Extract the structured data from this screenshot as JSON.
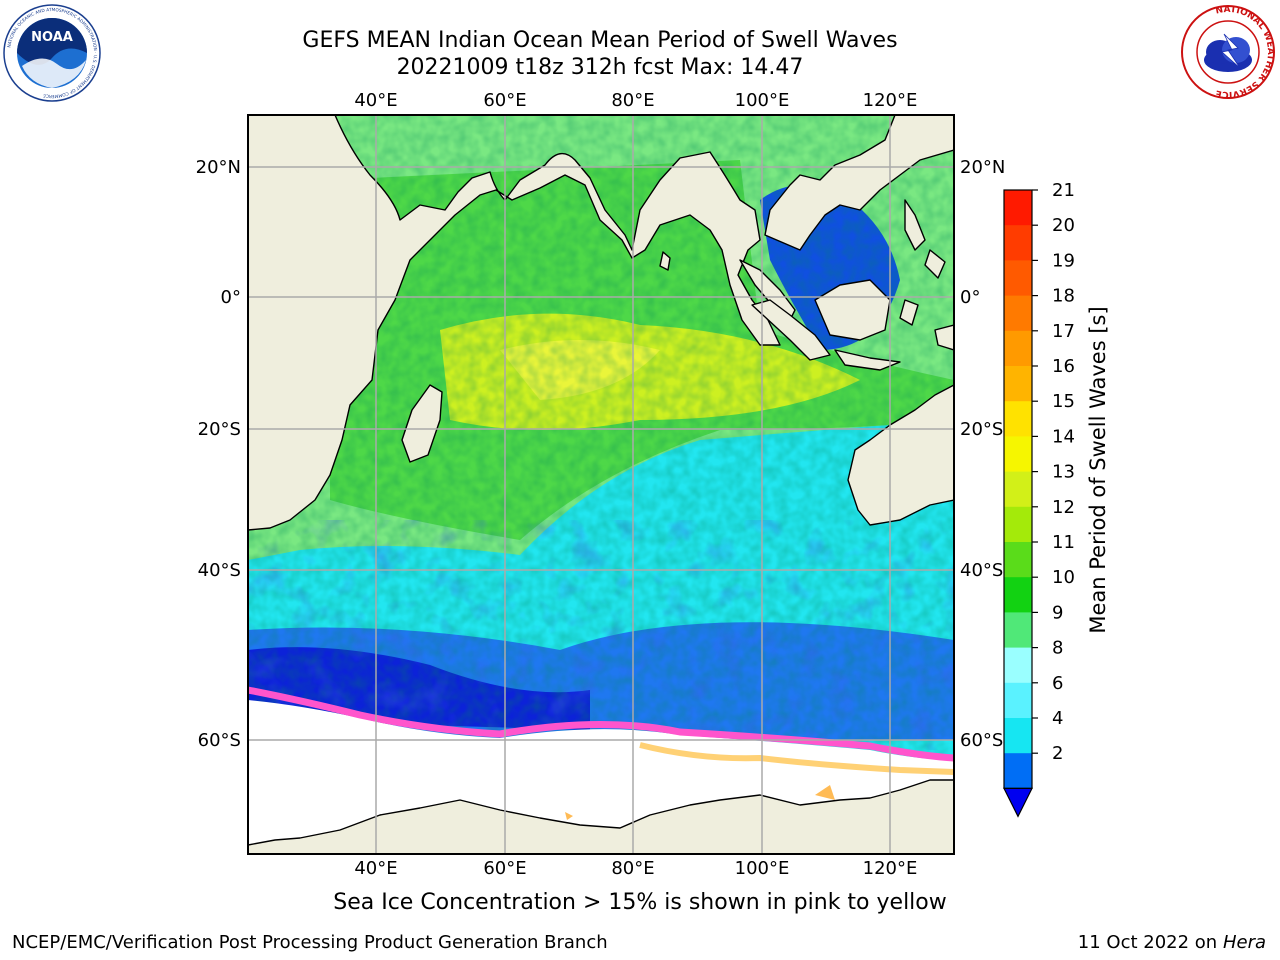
{
  "header": {
    "title_line1": "GEFS MEAN Indian Ocean Mean Period of Swell Waves",
    "title_line2": "20221009 t18z 312h fcst   Max: 14.47"
  },
  "map": {
    "lon_ticks": [
      "40°E",
      "60°E",
      "80°E",
      "100°E",
      "120°E"
    ],
    "lat_ticks": [
      "20°N",
      "0°",
      "20°S",
      "40°S",
      "60°S"
    ],
    "field_colors": {
      "ocean_warm": "#6ddf5a",
      "ocean_yellow": "#e8f23a",
      "ocean_cyan": "#22e6f0",
      "ocean_blue": "#1a6cf0",
      "ocean_deep": "#0a1ad8",
      "land": "#efeedd",
      "ice_pink": "#ff55cc",
      "ice_yellow": "#ffcc66"
    }
  },
  "colorbar": {
    "label": "Mean Period of Swell Waves [s]",
    "ticks": [
      "21",
      "20",
      "19",
      "18",
      "17",
      "16",
      "15",
      "14",
      "13",
      "12",
      "11",
      "10",
      "9",
      "8",
      "6",
      "4",
      "2"
    ],
    "colors": [
      "#ff1a00",
      "#ff3c00",
      "#ff5a00",
      "#ff7a00",
      "#ff9a00",
      "#ffb400",
      "#ffe200",
      "#f6f600",
      "#d2f018",
      "#a4ea0a",
      "#5adc1a",
      "#12d212",
      "#50e878",
      "#9affff",
      "#5af2ff",
      "#16e6f2",
      "#006ef5"
    ],
    "underflow_color": "#0000f0"
  },
  "footer": {
    "note": "Sea Ice Concentration > 15% is shown in pink to yellow",
    "left": "NCEP/EMC/Verification Post Processing Product Generation Branch",
    "right_prefix": "11 Oct 2022 on ",
    "right_machine": "Hera"
  },
  "logos": {
    "noaa_text": "NOAA",
    "noaa_ring_text": "NATIONAL OCEANIC AND ATMOSPHERIC ADMINISTRATION · U.S. DEPARTMENT OF COMMERCE",
    "nws_ring_text": "NATIONAL WEATHER SERVICE"
  }
}
